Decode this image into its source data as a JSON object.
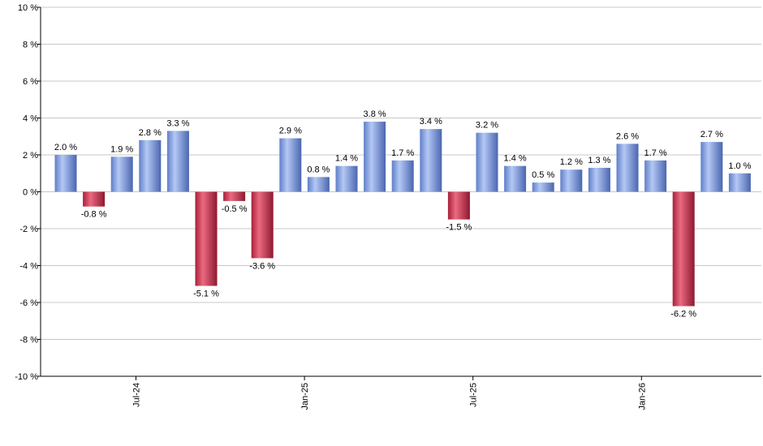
{
  "chart_data": {
    "type": "bar",
    "title": "",
    "xlabel": "",
    "ylabel": "",
    "ylim": [
      -10,
      10
    ],
    "yticks": [
      10,
      8,
      6,
      4,
      2,
      0,
      -2,
      -4,
      -6,
      -8,
      -10
    ],
    "ytick_labels": [
      "10 %",
      "8 %",
      "6 %",
      "4 %",
      "2 %",
      "0 %",
      "-2 %",
      "-4 %",
      "-6 %",
      "-8 %",
      "-10 %"
    ],
    "grid": true,
    "x_tick_labels": [
      {
        "label": "Jul-24",
        "index": 2.5
      },
      {
        "label": "Jan-25",
        "index": 8.5
      },
      {
        "label": "Jul-25",
        "index": 14.5
      },
      {
        "label": "Jan-26",
        "index": 20.5
      }
    ],
    "values": [
      2.0,
      -0.8,
      1.9,
      2.8,
      3.3,
      -5.1,
      -0.5,
      -3.6,
      2.9,
      0.8,
      1.4,
      3.8,
      1.7,
      3.4,
      -1.5,
      3.2,
      1.4,
      0.5,
      1.2,
      1.3,
      2.6,
      1.7,
      -6.2,
      2.7,
      1.0
    ],
    "labels": [
      "2.0 %",
      "-0.8 %",
      "1.9 %",
      "2.8 %",
      "3.3 %",
      "-5.1 %",
      "-0.5 %",
      "-3.6 %",
      "2.9 %",
      "0.8 %",
      "1.4 %",
      "3.8 %",
      "1.7 %",
      "3.4 %",
      "-1.5 %",
      "3.2 %",
      "1.4 %",
      "0.5 %",
      "1.2 %",
      "1.3 %",
      "2.6 %",
      "1.7 %",
      "-6.2 %",
      "2.7 %",
      "1.0 %"
    ],
    "colors": {
      "positive": "#7f9fe0",
      "negative": "#c8304c",
      "grid": "#c8c8c8",
      "axis": "#000000"
    }
  }
}
